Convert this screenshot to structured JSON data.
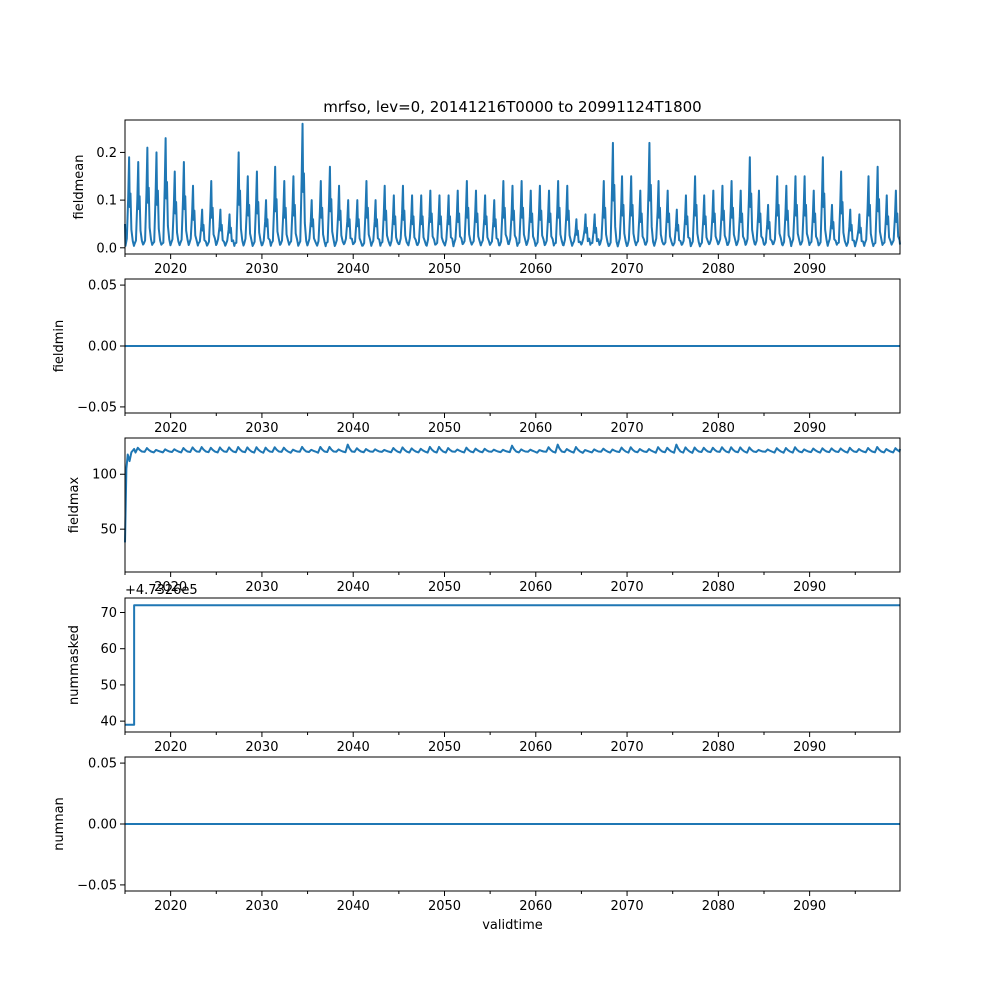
{
  "chart_data": [
    {
      "type": "line",
      "title": "mrfso, lev=0, 20141216T0000 to 20991124T1800",
      "xlabel": "",
      "ylabel": "fieldmean",
      "xlim": [
        2015.0,
        2099.9
      ],
      "ylim": [
        -0.013,
        0.268
      ],
      "xticks": [
        "2020",
        "2030",
        "2040",
        "2050",
        "2060",
        "2070",
        "2080",
        "2090"
      ],
      "yticks": [
        "0.0",
        "0.1",
        "0.2"
      ],
      "color": "#1f77b4",
      "series": [
        {
          "values": "annual seasonal cycle: near 0.0 in low months, peaks each year",
          "annual_peaks": [
            {
              "year": 2015.5,
              "value": 0.19
            },
            {
              "year": 2016.5,
              "value": 0.18
            },
            {
              "year": 2017.5,
              "value": 0.21
            },
            {
              "year": 2018.5,
              "value": 0.2
            },
            {
              "year": 2019.5,
              "value": 0.23
            },
            {
              "year": 2020.5,
              "value": 0.16
            },
            {
              "year": 2021.5,
              "value": 0.18
            },
            {
              "year": 2022.5,
              "value": 0.13
            },
            {
              "year": 2023.5,
              "value": 0.08
            },
            {
              "year": 2024.5,
              "value": 0.14
            },
            {
              "year": 2025.5,
              "value": 0.08
            },
            {
              "year": 2026.5,
              "value": 0.07
            },
            {
              "year": 2027.5,
              "value": 0.2
            },
            {
              "year": 2028.5,
              "value": 0.15
            },
            {
              "year": 2029.5,
              "value": 0.16
            },
            {
              "year": 2030.5,
              "value": 0.1
            },
            {
              "year": 2031.5,
              "value": 0.17
            },
            {
              "year": 2032.5,
              "value": 0.14
            },
            {
              "year": 2033.5,
              "value": 0.15
            },
            {
              "year": 2034.5,
              "value": 0.26
            },
            {
              "year": 2035.5,
              "value": 0.1
            },
            {
              "year": 2036.5,
              "value": 0.14
            },
            {
              "year": 2037.5,
              "value": 0.17
            },
            {
              "year": 2038.5,
              "value": 0.13
            },
            {
              "year": 2039.5,
              "value": 0.1
            },
            {
              "year": 2040.5,
              "value": 0.1
            },
            {
              "year": 2041.5,
              "value": 0.14
            },
            {
              "year": 2042.5,
              "value": 0.1
            },
            {
              "year": 2043.5,
              "value": 0.13
            },
            {
              "year": 2044.5,
              "value": 0.11
            },
            {
              "year": 2045.5,
              "value": 0.13
            },
            {
              "year": 2046.5,
              "value": 0.11
            },
            {
              "year": 2047.5,
              "value": 0.11
            },
            {
              "year": 2048.5,
              "value": 0.12
            },
            {
              "year": 2049.5,
              "value": 0.11
            },
            {
              "year": 2050.5,
              "value": 0.11
            },
            {
              "year": 2051.5,
              "value": 0.12
            },
            {
              "year": 2052.5,
              "value": 0.14
            },
            {
              "year": 2053.5,
              "value": 0.12
            },
            {
              "year": 2054.5,
              "value": 0.11
            },
            {
              "year": 2055.5,
              "value": 0.1
            },
            {
              "year": 2056.5,
              "value": 0.14
            },
            {
              "year": 2057.5,
              "value": 0.13
            },
            {
              "year": 2058.5,
              "value": 0.14
            },
            {
              "year": 2059.5,
              "value": 0.12
            },
            {
              "year": 2060.5,
              "value": 0.13
            },
            {
              "year": 2061.5,
              "value": 0.12
            },
            {
              "year": 2062.5,
              "value": 0.14
            },
            {
              "year": 2063.5,
              "value": 0.13
            },
            {
              "year": 2064.5,
              "value": 0.06
            },
            {
              "year": 2065.5,
              "value": 0.07
            },
            {
              "year": 2066.5,
              "value": 0.07
            },
            {
              "year": 2067.5,
              "value": 0.14
            },
            {
              "year": 2068.5,
              "value": 0.22
            },
            {
              "year": 2069.5,
              "value": 0.15
            },
            {
              "year": 2070.5,
              "value": 0.15
            },
            {
              "year": 2071.5,
              "value": 0.12
            },
            {
              "year": 2072.5,
              "value": 0.22
            },
            {
              "year": 2073.5,
              "value": 0.14
            },
            {
              "year": 2074.5,
              "value": 0.12
            },
            {
              "year": 2075.5,
              "value": 0.08
            },
            {
              "year": 2076.5,
              "value": 0.11
            },
            {
              "year": 2077.5,
              "value": 0.15
            },
            {
              "year": 2078.5,
              "value": 0.11
            },
            {
              "year": 2079.5,
              "value": 0.12
            },
            {
              "year": 2080.5,
              "value": 0.13
            },
            {
              "year": 2081.5,
              "value": 0.14
            },
            {
              "year": 2082.5,
              "value": 0.12
            },
            {
              "year": 2083.5,
              "value": 0.19
            },
            {
              "year": 2084.5,
              "value": 0.12
            },
            {
              "year": 2085.5,
              "value": 0.09
            },
            {
              "year": 2086.5,
              "value": 0.15
            },
            {
              "year": 2087.5,
              "value": 0.13
            },
            {
              "year": 2088.5,
              "value": 0.15
            },
            {
              "year": 2089.5,
              "value": 0.15
            },
            {
              "year": 2090.5,
              "value": 0.12
            },
            {
              "year": 2091.5,
              "value": 0.19
            },
            {
              "year": 2092.5,
              "value": 0.09
            },
            {
              "year": 2093.5,
              "value": 0.16
            },
            {
              "year": 2094.5,
              "value": 0.08
            },
            {
              "year": 2095.5,
              "value": 0.07
            },
            {
              "year": 2096.5,
              "value": 0.15
            },
            {
              "year": 2097.5,
              "value": 0.17
            },
            {
              "year": 2098.5,
              "value": 0.11
            },
            {
              "year": 2099.5,
              "value": 0.12
            }
          ]
        }
      ]
    },
    {
      "type": "line",
      "title": "",
      "xlabel": "",
      "ylabel": "fieldmin",
      "xlim": [
        2015.0,
        2099.9
      ],
      "ylim": [
        -0.055,
        0.055
      ],
      "xticks": [
        "2020",
        "2030",
        "2040",
        "2050",
        "2060",
        "2070",
        "2080",
        "2090"
      ],
      "yticks": [
        "−0.05",
        "0.00",
        "0.05"
      ],
      "color": "#1f77b4",
      "series": [
        {
          "x": [
            2015.0,
            2099.9
          ],
          "y": [
            0.0,
            0.0
          ]
        }
      ]
    },
    {
      "type": "line",
      "title": "",
      "xlabel": "",
      "ylabel": "fieldmax",
      "xlim": [
        2015.0,
        2099.9
      ],
      "ylim": [
        11,
        133
      ],
      "xticks": [
        "2020",
        "2030",
        "2040",
        "2050",
        "2060",
        "2070",
        "2080",
        "2090"
      ],
      "yticks": [
        "50",
        "100"
      ],
      "color": "#1f77b4",
      "series": [
        {
          "start": [
            {
              "x": 2015.0,
              "y": 38
            },
            {
              "x": 2015.15,
              "y": 105
            },
            {
              "x": 2015.3,
              "y": 118
            },
            {
              "x": 2015.5,
              "y": 112
            },
            {
              "x": 2015.7,
              "y": 120
            },
            {
              "x": 2016.0,
              "y": 123
            }
          ],
          "baseline": 121,
          "annual_bumps": "approx. +2 to +6 around baseline each year",
          "notable_peaks": [
            {
              "x": 2039,
              "y": 127
            },
            {
              "x": 2057,
              "y": 126
            },
            {
              "x": 2062.5,
              "y": 127
            },
            {
              "x": 2075,
              "y": 127
            }
          ]
        }
      ]
    },
    {
      "type": "line",
      "title": "",
      "xlabel": "",
      "ylabel": "nummasked",
      "offset_text": "+4.7326e5",
      "xlim": [
        2015.0,
        2099.9
      ],
      "ylim": [
        37,
        74
      ],
      "xticks": [
        "2020",
        "2030",
        "2040",
        "2050",
        "2060",
        "2070",
        "2080",
        "2090"
      ],
      "yticks": [
        "40",
        "50",
        "60",
        "70"
      ],
      "color": "#1f77b4",
      "series": [
        {
          "x": [
            2015.0,
            2016.0,
            2016.0,
            2099.9
          ],
          "y": [
            39,
            39,
            72,
            72
          ]
        }
      ]
    },
    {
      "type": "line",
      "title": "",
      "xlabel": "validtime",
      "ylabel": "numnan",
      "xlim": [
        2015.0,
        2099.9
      ],
      "ylim": [
        -0.055,
        0.055
      ],
      "xticks": [
        "2020",
        "2030",
        "2040",
        "2050",
        "2060",
        "2070",
        "2080",
        "2090"
      ],
      "yticks": [
        "−0.05",
        "0.00",
        "0.05"
      ],
      "color": "#1f77b4",
      "series": [
        {
          "x": [
            2015.0,
            2099.9
          ],
          "y": [
            0.0,
            0.0
          ]
        }
      ]
    }
  ]
}
